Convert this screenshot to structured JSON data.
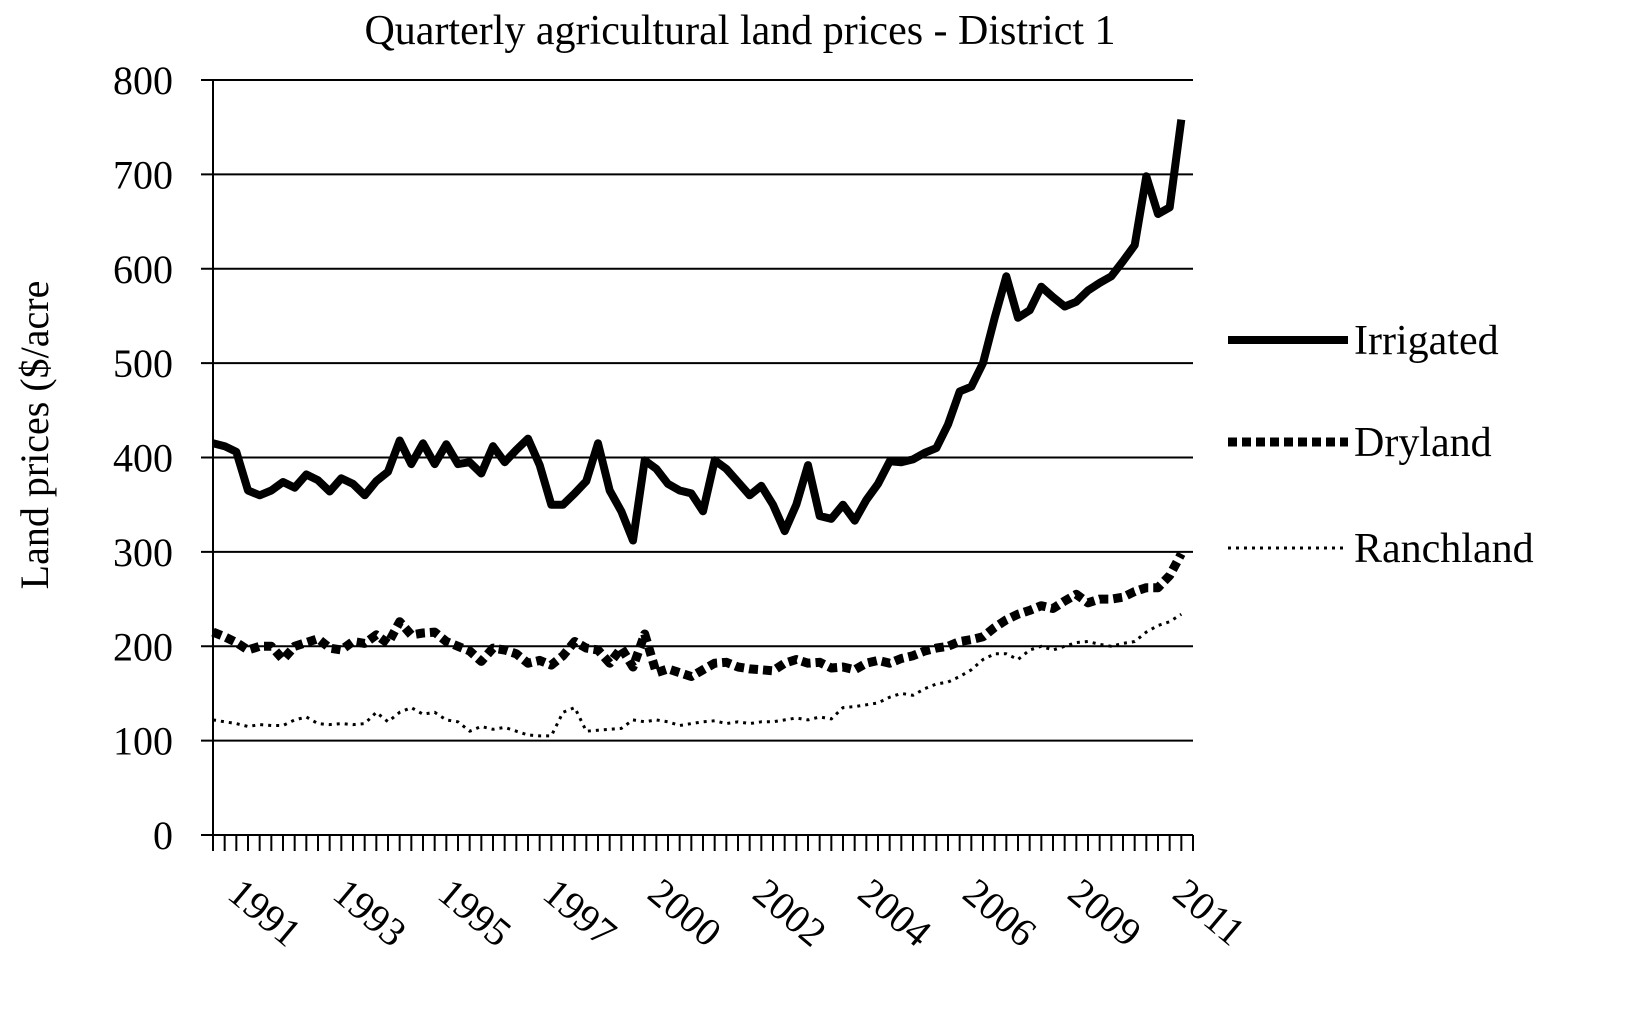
{
  "chart_data": {
    "type": "line",
    "title": "Quarterly agricultural land prices - District 1",
    "xlabel": "",
    "ylabel": "Land prices ($/acre",
    "ylim": [
      0,
      800
    ],
    "yticks": [
      0,
      100,
      200,
      300,
      400,
      500,
      600,
      700,
      800
    ],
    "xrange": [
      1990.6,
      2011.6
    ],
    "xticks": [
      {
        "label": "1991",
        "x": 1991
      },
      {
        "label": "1993",
        "x": 1993.25
      },
      {
        "label": "1995",
        "x": 1995.5
      },
      {
        "label": "1997",
        "x": 1997.75
      },
      {
        "label": "2000",
        "x": 2000
      },
      {
        "label": "2002",
        "x": 2002.25
      },
      {
        "label": "2004",
        "x": 2004.5
      },
      {
        "label": "2006",
        "x": 2006.75
      },
      {
        "label": "2009",
        "x": 2009
      },
      {
        "label": "2011",
        "x": 2011.25
      }
    ],
    "grid": true,
    "legend_position": "right",
    "series": [
      {
        "name": "Irrigated",
        "style": "solid",
        "color": "#000000",
        "points": [
          [
            1990.6,
            415
          ],
          [
            1990.85,
            412
          ],
          [
            1991.1,
            406
          ],
          [
            1991.35,
            365
          ],
          [
            1991.6,
            360
          ],
          [
            1991.85,
            365
          ],
          [
            1992.1,
            374
          ],
          [
            1992.35,
            368
          ],
          [
            1992.6,
            382
          ],
          [
            1992.85,
            376
          ],
          [
            1993.1,
            364
          ],
          [
            1993.35,
            378
          ],
          [
            1993.6,
            372
          ],
          [
            1993.85,
            360
          ],
          [
            1994.1,
            375
          ],
          [
            1994.35,
            385
          ],
          [
            1994.6,
            418
          ],
          [
            1994.85,
            393
          ],
          [
            1995.1,
            415
          ],
          [
            1995.35,
            393
          ],
          [
            1995.6,
            414
          ],
          [
            1995.85,
            393
          ],
          [
            1996.1,
            395
          ],
          [
            1996.35,
            383
          ],
          [
            1996.6,
            412
          ],
          [
            1996.85,
            395
          ],
          [
            1997.1,
            408
          ],
          [
            1997.35,
            420
          ],
          [
            1997.6,
            392
          ],
          [
            1997.85,
            350
          ],
          [
            1998.1,
            350
          ],
          [
            1998.35,
            362
          ],
          [
            1998.6,
            375
          ],
          [
            1998.85,
            415
          ],
          [
            1999.1,
            365
          ],
          [
            1999.35,
            343
          ],
          [
            1999.6,
            312
          ],
          [
            1999.85,
            397
          ],
          [
            2000.1,
            388
          ],
          [
            2000.35,
            372
          ],
          [
            2000.6,
            365
          ],
          [
            2000.85,
            362
          ],
          [
            2001.1,
            343
          ],
          [
            2001.35,
            397
          ],
          [
            2001.6,
            388
          ],
          [
            2001.85,
            374
          ],
          [
            2002.1,
            360
          ],
          [
            2002.35,
            370
          ],
          [
            2002.6,
            350
          ],
          [
            2002.85,
            322
          ],
          [
            2003.1,
            350
          ],
          [
            2003.35,
            392
          ],
          [
            2003.6,
            338
          ],
          [
            2003.85,
            335
          ],
          [
            2004.1,
            350
          ],
          [
            2004.35,
            333
          ],
          [
            2004.6,
            355
          ],
          [
            2004.85,
            372
          ],
          [
            2005.1,
            396
          ],
          [
            2005.35,
            395
          ],
          [
            2005.6,
            398
          ],
          [
            2005.85,
            405
          ],
          [
            2006.1,
            410
          ],
          [
            2006.35,
            435
          ],
          [
            2006.6,
            470
          ],
          [
            2006.85,
            475
          ],
          [
            2007.1,
            500
          ],
          [
            2007.35,
            548
          ],
          [
            2007.6,
            592
          ],
          [
            2007.85,
            548
          ],
          [
            2008.1,
            556
          ],
          [
            2008.35,
            581
          ],
          [
            2008.6,
            570
          ],
          [
            2008.85,
            560
          ],
          [
            2009.1,
            565
          ],
          [
            2009.35,
            577
          ],
          [
            2009.6,
            585
          ],
          [
            2009.85,
            592
          ],
          [
            2010.1,
            608
          ],
          [
            2010.35,
            625
          ],
          [
            2010.6,
            698
          ],
          [
            2010.85,
            658
          ],
          [
            2011.1,
            665
          ],
          [
            2011.35,
            758
          ]
        ]
      },
      {
        "name": "Dryland",
        "style": "dashed",
        "color": "#000000",
        "points": [
          [
            1990.6,
            215
          ],
          [
            1990.85,
            210
          ],
          [
            1991.1,
            204
          ],
          [
            1991.35,
            196
          ],
          [
            1991.6,
            200
          ],
          [
            1991.85,
            200
          ],
          [
            1992.1,
            186
          ],
          [
            1992.35,
            200
          ],
          [
            1992.6,
            204
          ],
          [
            1992.85,
            208
          ],
          [
            1993.1,
            198
          ],
          [
            1993.35,
            196
          ],
          [
            1993.6,
            205
          ],
          [
            1993.85,
            203
          ],
          [
            1994.1,
            212
          ],
          [
            1994.35,
            203
          ],
          [
            1994.6,
            226
          ],
          [
            1994.85,
            212
          ],
          [
            1995.1,
            214
          ],
          [
            1995.35,
            215
          ],
          [
            1995.6,
            205
          ],
          [
            1995.85,
            200
          ],
          [
            1996.1,
            195
          ],
          [
            1996.35,
            184
          ],
          [
            1996.6,
            198
          ],
          [
            1996.85,
            196
          ],
          [
            1997.1,
            192
          ],
          [
            1997.35,
            182
          ],
          [
            1997.6,
            185
          ],
          [
            1997.85,
            180
          ],
          [
            1998.1,
            190
          ],
          [
            1998.35,
            205
          ],
          [
            1998.6,
            198
          ],
          [
            1998.85,
            196
          ],
          [
            1999.1,
            182
          ],
          [
            1999.35,
            198
          ],
          [
            1999.6,
            178
          ],
          [
            1999.85,
            213
          ],
          [
            2000.1,
            172
          ],
          [
            2000.35,
            176
          ],
          [
            2000.6,
            172
          ],
          [
            2000.85,
            168
          ],
          [
            2001.1,
            175
          ],
          [
            2001.35,
            182
          ],
          [
            2001.6,
            183
          ],
          [
            2001.85,
            178
          ],
          [
            2002.1,
            176
          ],
          [
            2002.35,
            175
          ],
          [
            2002.6,
            174
          ],
          [
            2002.85,
            182
          ],
          [
            2003.1,
            186
          ],
          [
            2003.35,
            182
          ],
          [
            2003.6,
            183
          ],
          [
            2003.85,
            177
          ],
          [
            2004.1,
            178
          ],
          [
            2004.35,
            175
          ],
          [
            2004.6,
            182
          ],
          [
            2004.85,
            185
          ],
          [
            2005.1,
            182
          ],
          [
            2005.35,
            187
          ],
          [
            2005.6,
            190
          ],
          [
            2005.85,
            195
          ],
          [
            2006.1,
            198
          ],
          [
            2006.35,
            200
          ],
          [
            2006.6,
            205
          ],
          [
            2006.85,
            207
          ],
          [
            2007.1,
            210
          ],
          [
            2007.35,
            220
          ],
          [
            2007.6,
            228
          ],
          [
            2007.85,
            234
          ],
          [
            2008.1,
            238
          ],
          [
            2008.35,
            243
          ],
          [
            2008.6,
            240
          ],
          [
            2008.85,
            248
          ],
          [
            2009.1,
            255
          ],
          [
            2009.35,
            246
          ],
          [
            2009.6,
            250
          ],
          [
            2009.85,
            250
          ],
          [
            2010.1,
            252
          ],
          [
            2010.35,
            258
          ],
          [
            2010.6,
            262
          ],
          [
            2010.85,
            262
          ],
          [
            2011.1,
            275
          ],
          [
            2011.35,
            298
          ]
        ]
      },
      {
        "name": "Ranchland",
        "style": "dotted",
        "color": "#000000",
        "points": [
          [
            1990.6,
            122
          ],
          [
            1990.85,
            120
          ],
          [
            1991.1,
            118
          ],
          [
            1991.35,
            115
          ],
          [
            1991.6,
            117
          ],
          [
            1991.85,
            116
          ],
          [
            1992.1,
            116
          ],
          [
            1992.35,
            122
          ],
          [
            1992.6,
            125
          ],
          [
            1992.85,
            118
          ],
          [
            1993.1,
            117
          ],
          [
            1993.35,
            118
          ],
          [
            1993.6,
            117
          ],
          [
            1993.85,
            118
          ],
          [
            1994.1,
            130
          ],
          [
            1994.35,
            120
          ],
          [
            1994.6,
            130
          ],
          [
            1994.85,
            135
          ],
          [
            1995.1,
            128
          ],
          [
            1995.35,
            130
          ],
          [
            1995.6,
            122
          ],
          [
            1995.85,
            120
          ],
          [
            1996.1,
            110
          ],
          [
            1996.35,
            115
          ],
          [
            1996.6,
            112
          ],
          [
            1996.85,
            114
          ],
          [
            1997.1,
            110
          ],
          [
            1997.35,
            106
          ],
          [
            1997.6,
            105
          ],
          [
            1997.85,
            105
          ],
          [
            1998.1,
            130
          ],
          [
            1998.35,
            135
          ],
          [
            1998.6,
            110
          ],
          [
            1998.85,
            111
          ],
          [
            1999.1,
            112
          ],
          [
            1999.35,
            113
          ],
          [
            1999.6,
            122
          ],
          [
            1999.85,
            120
          ],
          [
            2000.1,
            122
          ],
          [
            2000.35,
            120
          ],
          [
            2000.6,
            116
          ],
          [
            2000.85,
            118
          ],
          [
            2001.1,
            120
          ],
          [
            2001.35,
            121
          ],
          [
            2001.6,
            118
          ],
          [
            2001.85,
            120
          ],
          [
            2002.1,
            118
          ],
          [
            2002.35,
            120
          ],
          [
            2002.6,
            120
          ],
          [
            2002.85,
            122
          ],
          [
            2003.1,
            124
          ],
          [
            2003.35,
            122
          ],
          [
            2003.6,
            125
          ],
          [
            2003.85,
            123
          ],
          [
            2004.1,
            135
          ],
          [
            2004.35,
            136
          ],
          [
            2004.6,
            138
          ],
          [
            2004.85,
            140
          ],
          [
            2005.1,
            146
          ],
          [
            2005.35,
            150
          ],
          [
            2005.6,
            148
          ],
          [
            2005.85,
            155
          ],
          [
            2006.1,
            160
          ],
          [
            2006.35,
            162
          ],
          [
            2006.6,
            168
          ],
          [
            2006.85,
            175
          ],
          [
            2007.1,
            186
          ],
          [
            2007.35,
            192
          ],
          [
            2007.6,
            192
          ],
          [
            2007.85,
            186
          ],
          [
            2008.1,
            196
          ],
          [
            2008.35,
            200
          ],
          [
            2008.6,
            196
          ],
          [
            2008.85,
            200
          ],
          [
            2009.1,
            204
          ],
          [
            2009.35,
            205
          ],
          [
            2009.6,
            202
          ],
          [
            2009.85,
            200
          ],
          [
            2010.1,
            203
          ],
          [
            2010.35,
            205
          ],
          [
            2010.6,
            215
          ],
          [
            2010.85,
            222
          ],
          [
            2011.1,
            226
          ],
          [
            2011.35,
            234
          ]
        ]
      }
    ]
  }
}
